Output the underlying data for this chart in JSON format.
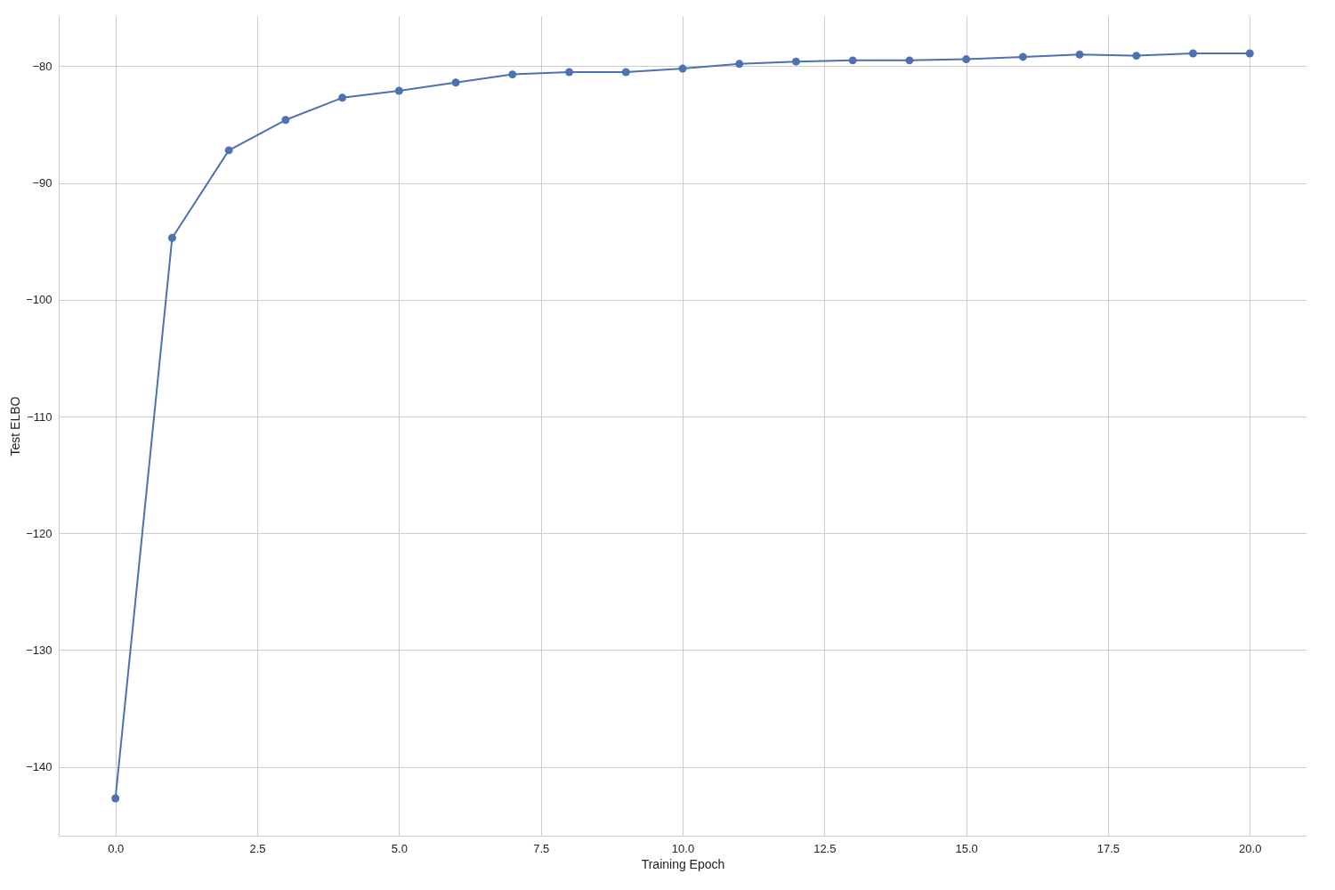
{
  "chart_data": {
    "type": "line",
    "xlabel": "Training Epoch",
    "ylabel": "Test ELBO",
    "x": [
      0,
      1,
      2,
      3,
      4,
      5,
      6,
      7,
      8,
      9,
      10,
      11,
      12,
      13,
      14,
      15,
      16,
      17,
      18,
      19,
      20
    ],
    "series": [
      {
        "color": "#4c72b0",
        "values": [
          -142.7,
          -94.7,
          -87.2,
          -84.6,
          -82.7,
          -82.1,
          -81.4,
          -80.7,
          -80.5,
          -80.5,
          -80.2,
          -79.8,
          -79.6,
          -79.5,
          -79.5,
          -79.4,
          -79.2,
          -79.0,
          -79.1,
          -78.9,
          -78.9
        ]
      }
    ],
    "xlim": [
      -1,
      21
    ],
    "ylim": [
      -145.9,
      -75.7
    ],
    "xticks": [
      {
        "value": 0,
        "label": "0.0"
      },
      {
        "value": 2.5,
        "label": "2.5"
      },
      {
        "value": 5,
        "label": "5.0"
      },
      {
        "value": 7.5,
        "label": "7.5"
      },
      {
        "value": 10,
        "label": "10.0"
      },
      {
        "value": 12.5,
        "label": "12.5"
      },
      {
        "value": 15,
        "label": "15.0"
      },
      {
        "value": 17.5,
        "label": "17.5"
      },
      {
        "value": 20,
        "label": "20.0"
      }
    ],
    "yticks": [
      {
        "value": -140,
        "label": "−140"
      },
      {
        "value": -130,
        "label": "−130"
      },
      {
        "value": -120,
        "label": "−120"
      },
      {
        "value": -110,
        "label": "−110"
      },
      {
        "value": -100,
        "label": "−100"
      },
      {
        "value": -90,
        "label": "−90"
      },
      {
        "value": -80,
        "label": "−80"
      }
    ],
    "grid": true,
    "marker": "circle",
    "line_style": "solid"
  }
}
